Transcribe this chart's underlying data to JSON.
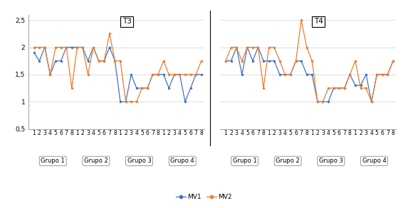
{
  "title_left": "T3",
  "title_right": "T4",
  "groups": [
    "Grupo 1",
    "Grupo 2",
    "Grupo 3",
    "Grupo 4"
  ],
  "n_per_group": 8,
  "color_mv1": "#4472C4",
  "color_mv2": "#ED7D31",
  "ylim": [
    0.5,
    2.6
  ],
  "yticks": [
    0.5,
    1.0,
    1.5,
    2.0,
    2.5
  ],
  "ytick_labels": [
    "0,5",
    "1",
    "1,5",
    "2",
    "2,5"
  ],
  "T3_MV1": [
    1.9,
    1.75,
    2.0,
    1.5,
    1.75,
    1.75,
    2.0,
    2.0,
    2.0,
    2.0,
    1.75,
    2.0,
    1.75,
    1.75,
    2.0,
    1.75,
    1.0,
    1.0,
    1.5,
    1.25,
    1.25,
    1.25,
    1.5,
    1.5,
    1.5,
    1.25,
    1.5,
    1.5,
    1.0,
    1.25,
    1.5,
    1.5
  ],
  "T3_MV2": [
    2.0,
    2.0,
    2.0,
    1.5,
    2.0,
    2.0,
    2.0,
    1.25,
    2.0,
    2.0,
    1.5,
    2.0,
    1.75,
    1.75,
    2.25,
    1.75,
    1.75,
    1.0,
    1.0,
    1.0,
    1.25,
    1.25,
    1.5,
    1.5,
    1.75,
    1.5,
    1.5,
    1.5,
    1.5,
    1.5,
    1.5,
    1.75
  ],
  "T4_MV1": [
    1.75,
    1.75,
    2.0,
    1.5,
    2.0,
    1.75,
    2.0,
    1.75,
    1.75,
    1.75,
    1.5,
    1.5,
    1.5,
    1.75,
    1.75,
    1.5,
    1.5,
    1.0,
    1.0,
    1.0,
    1.25,
    1.25,
    1.25,
    1.5,
    1.3,
    1.3,
    1.5,
    1.0,
    1.5,
    1.5,
    1.5,
    1.75
  ],
  "T4_MV2": [
    1.75,
    2.0,
    2.0,
    1.75,
    2.0,
    2.0,
    2.0,
    1.25,
    2.0,
    2.0,
    1.75,
    1.5,
    1.5,
    1.75,
    2.5,
    2.0,
    1.75,
    1.0,
    1.0,
    1.25,
    1.25,
    1.25,
    1.25,
    1.5,
    1.75,
    1.25,
    1.25,
    1.0,
    1.5,
    1.5,
    1.5,
    1.75
  ],
  "label_mv1": "MV1",
  "label_mv2": "MV2",
  "background_color": "#FFFFFF",
  "grid_color": "#D0D0D0",
  "font_size": 6.5,
  "marker_size": 2.5,
  "line_width": 0.9
}
